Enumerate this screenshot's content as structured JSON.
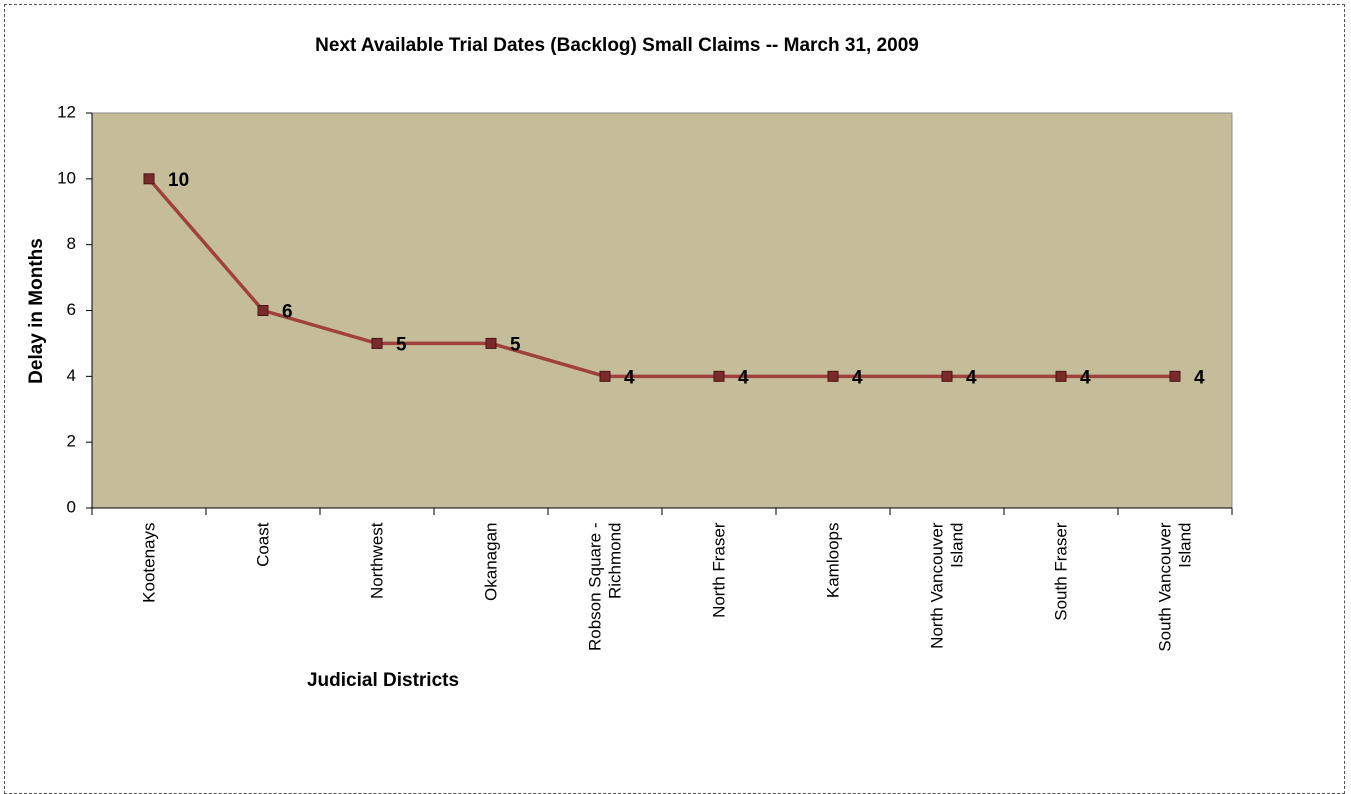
{
  "chart_data": {
    "type": "line",
    "title": "Next Available Trial Dates (Backlog) Small Claims -- March 31, 2009",
    "x_label": "Judicial Districts",
    "y_label": "Delay in Months",
    "categories": [
      "Kootenays",
      "Coast",
      "Northwest",
      "Okanagan",
      "Robson Square - Richmond",
      "North Fraser",
      "Kamloops",
      "North Vancouver Island",
      "South Fraser",
      "South Vancouver Island"
    ],
    "series": [
      {
        "name": "Delay",
        "color": "#a0413d",
        "values": [
          10,
          6,
          5,
          5,
          4,
          4,
          4,
          4,
          4,
          4
        ]
      }
    ],
    "ylim": [
      0,
      12
    ],
    "yticks": [
      0,
      2,
      4,
      6,
      8,
      10,
      12
    ],
    "grid": false
  }
}
